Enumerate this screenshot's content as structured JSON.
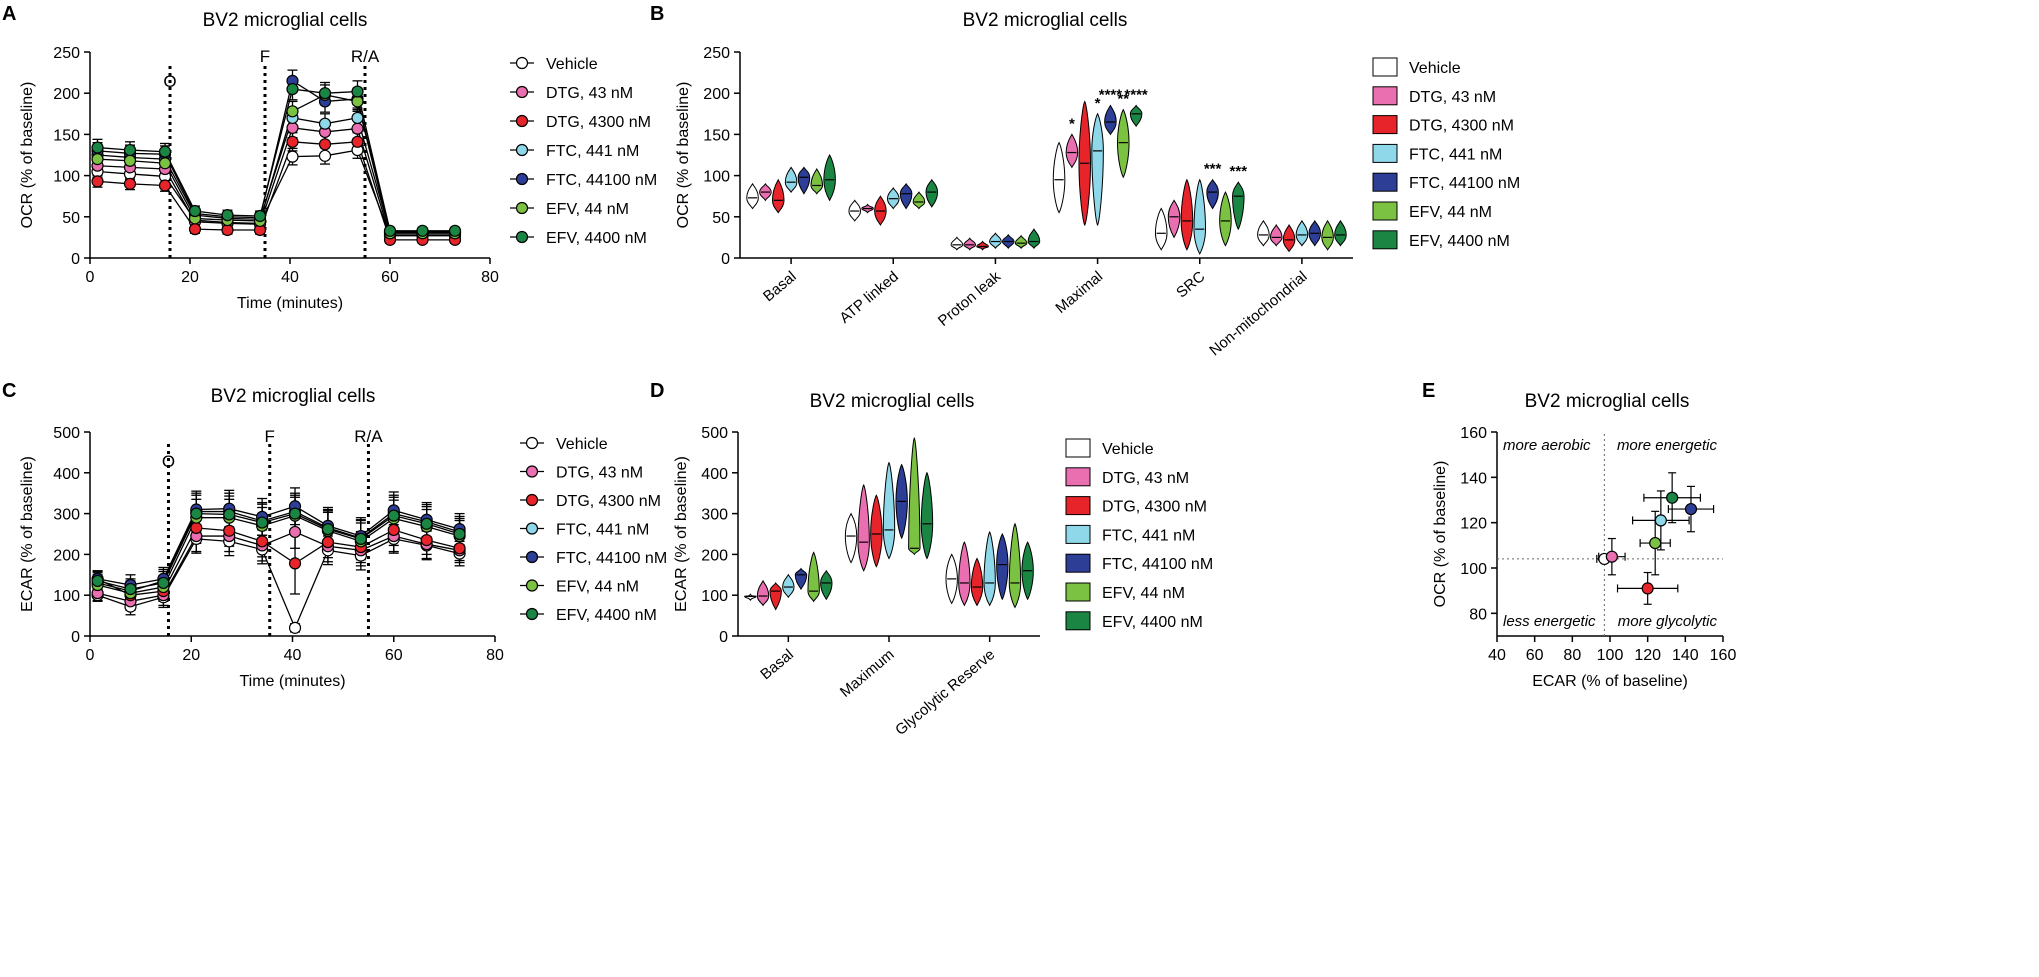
{
  "chart_data": [
    {
      "panel": "A",
      "type": "line",
      "title": "BV2 microglial cells",
      "xlabel": "Time (minutes)",
      "ylabel": "OCR (% of baseline)",
      "xlim": [
        0,
        80
      ],
      "ylim": [
        0,
        250
      ],
      "xticks": [
        0,
        20,
        40,
        60,
        80
      ],
      "yticks": [
        0,
        50,
        100,
        150,
        200,
        250
      ],
      "injections": [
        {
          "label": "O",
          "x": 16
        },
        {
          "label": "F",
          "x": 35
        },
        {
          "label": "R/A",
          "x": 55
        }
      ],
      "x": [
        1.5,
        8,
        15,
        21,
        27.5,
        34,
        40.5,
        47,
        53.5,
        60,
        66.5,
        73
      ],
      "series": [
        {
          "name": "Vehicle",
          "color": "#ffffff",
          "values": [
            105,
            102,
            99,
            46,
            43,
            42,
            123,
            124,
            131,
            28,
            28,
            28
          ],
          "err": [
            7,
            7,
            7,
            5,
            5,
            5,
            10,
            10,
            10,
            4,
            4,
            4
          ]
        },
        {
          "name": "DTG, 43 nM",
          "color": "#ea6fb0",
          "values": [
            112,
            110,
            108,
            44,
            42,
            41,
            158,
            153,
            157,
            27,
            27,
            27
          ],
          "err": [
            8,
            8,
            8,
            5,
            5,
            5,
            12,
            12,
            12,
            4,
            4,
            4
          ]
        },
        {
          "name": "DTG, 4300 nM",
          "color": "#e8242b",
          "values": [
            93,
            90,
            88,
            35,
            34,
            34,
            141,
            138,
            141,
            22,
            22,
            22
          ],
          "err": [
            7,
            7,
            7,
            5,
            5,
            5,
            11,
            11,
            11,
            4,
            4,
            4
          ]
        },
        {
          "name": "FTC, 441 nM",
          "color": "#8fd8ea",
          "values": [
            125,
            122,
            120,
            52,
            48,
            47,
            170,
            163,
            170,
            31,
            31,
            31
          ],
          "err": [
            9,
            9,
            9,
            6,
            6,
            6,
            12,
            12,
            12,
            4,
            4,
            4
          ]
        },
        {
          "name": "FTC, 44100 nM",
          "color": "#2d3e96",
          "values": [
            130,
            127,
            126,
            54,
            50,
            49,
            215,
            190,
            193,
            32,
            32,
            32
          ],
          "err": [
            10,
            10,
            10,
            6,
            6,
            6,
            13,
            13,
            13,
            4,
            4,
            4
          ]
        },
        {
          "name": "EFV, 44 nM",
          "color": "#7cc242",
          "values": [
            120,
            118,
            115,
            48,
            46,
            45,
            178,
            198,
            190,
            30,
            30,
            30
          ],
          "err": [
            9,
            9,
            9,
            6,
            6,
            6,
            12,
            12,
            12,
            4,
            4,
            4
          ]
        },
        {
          "name": "EFV, 4400 nM",
          "color": "#1b8544",
          "values": [
            134,
            131,
            129,
            57,
            52,
            51,
            205,
            200,
            202,
            33,
            33,
            33
          ],
          "err": [
            10,
            10,
            10,
            6,
            6,
            6,
            13,
            13,
            13,
            4,
            4,
            4
          ]
        }
      ]
    },
    {
      "panel": "B",
      "type": "violin",
      "title": "BV2 microglial cells",
      "ylabel": "OCR (% of baseline)",
      "ylim": [
        0,
        250
      ],
      "yticks": [
        0,
        50,
        100,
        150,
        200,
        250
      ],
      "categories": [
        "Basal",
        "ATP linked",
        "Proton leak",
        "Maximal",
        "SRC",
        "Non-mitochondrial"
      ],
      "series_names": [
        "Vehicle",
        "DTG, 43 nM",
        "DTG, 4300 nM",
        "FTC, 441 nM",
        "FTC, 44100 nM",
        "EFV, 44 nM",
        "EFV, 4400 nM"
      ],
      "colors": [
        "#ffffff",
        "#ea6fb0",
        "#e8242b",
        "#8fd8ea",
        "#2d3e96",
        "#7cc242",
        "#1b8544"
      ],
      "violins": [
        [
          [
            60,
            90,
            73
          ],
          [
            70,
            90,
            80
          ],
          [
            55,
            95,
            70
          ],
          [
            80,
            110,
            92
          ],
          [
            78,
            110,
            98
          ],
          [
            78,
            108,
            88
          ],
          [
            70,
            125,
            95
          ]
        ],
        [
          [
            45,
            70,
            57
          ],
          [
            55,
            65,
            60
          ],
          [
            40,
            75,
            57
          ],
          [
            60,
            85,
            72
          ],
          [
            60,
            90,
            78
          ],
          [
            60,
            80,
            68
          ],
          [
            62,
            95,
            80
          ]
        ],
        [
          [
            10,
            25,
            16
          ],
          [
            10,
            24,
            16
          ],
          [
            10,
            20,
            14
          ],
          [
            12,
            30,
            20
          ],
          [
            12,
            28,
            20
          ],
          [
            12,
            27,
            18
          ],
          [
            12,
            35,
            20
          ]
        ],
        [
          [
            55,
            140,
            95
          ],
          [
            110,
            150,
            128
          ],
          [
            40,
            190,
            115
          ],
          [
            40,
            175,
            130
          ],
          [
            150,
            185,
            165
          ],
          [
            98,
            180,
            140
          ],
          [
            160,
            185,
            175
          ]
        ],
        [
          [
            10,
            60,
            30
          ],
          [
            25,
            70,
            50
          ],
          [
            10,
            95,
            45
          ],
          [
            5,
            95,
            35
          ],
          [
            60,
            95,
            80
          ],
          [
            15,
            80,
            45
          ],
          [
            35,
            92,
            75
          ]
        ],
        [
          [
            15,
            45,
            28
          ],
          [
            15,
            40,
            25
          ],
          [
            8,
            40,
            22
          ],
          [
            15,
            45,
            28
          ],
          [
            15,
            45,
            30
          ],
          [
            10,
            45,
            25
          ],
          [
            15,
            45,
            28
          ]
        ]
      ],
      "annotations": [
        {
          "category": "Maximal",
          "series": "DTG, 43 nM",
          "text": "*"
        },
        {
          "category": "Maximal",
          "series": "FTC, 441 nM",
          "text": "*"
        },
        {
          "category": "Maximal",
          "series": "FTC, 44100 nM",
          "text": "****"
        },
        {
          "category": "Maximal",
          "series": "EFV, 44 nM",
          "text": "**"
        },
        {
          "category": "Maximal",
          "series": "EFV, 4400 nM",
          "text": "****"
        },
        {
          "category": "SRC",
          "series": "FTC, 44100 nM",
          "text": "***"
        },
        {
          "category": "SRC",
          "series": "EFV, 4400 nM",
          "text": "***"
        }
      ]
    },
    {
      "panel": "C",
      "type": "line",
      "title": "BV2 microglial cells",
      "xlabel": "Time (minutes)",
      "ylabel": "ECAR (% of baseline)",
      "xlim": [
        0,
        80
      ],
      "ylim": [
        0,
        500
      ],
      "xticks": [
        0,
        20,
        40,
        60,
        80
      ],
      "yticks": [
        0,
        100,
        200,
        300,
        400,
        500
      ],
      "injections": [
        {
          "label": "O",
          "x": 15.5
        },
        {
          "label": "F",
          "x": 35.5
        },
        {
          "label": "R/A",
          "x": 55
        }
      ],
      "x": [
        1.5,
        8,
        14.5,
        21,
        27.5,
        34,
        40.5,
        47,
        53.5,
        60,
        66.5,
        73
      ],
      "series": [
        {
          "name": "Vehicle",
          "color": "#ffffff",
          "values": [
            100,
            72,
            95,
            238,
            232,
            212,
            20,
            210,
            197,
            238,
            222,
            202
          ],
          "err": [
            15,
            20,
            25,
            35,
            35,
            35,
            10,
            35,
            35,
            35,
            35,
            30
          ]
        },
        {
          "name": "DTG, 43 nM",
          "color": "#ea6fb0",
          "values": [
            105,
            85,
            100,
            245,
            245,
            222,
            255,
            220,
            210,
            245,
            225,
            210
          ],
          "err": [
            18,
            22,
            25,
            38,
            38,
            38,
            40,
            38,
            38,
            38,
            35,
            30
          ]
        },
        {
          "name": "DTG, 4300 nM",
          "color": "#e8242b",
          "values": [
            140,
            100,
            110,
            265,
            258,
            232,
            178,
            230,
            218,
            260,
            235,
            215
          ],
          "err": [
            18,
            22,
            25,
            38,
            38,
            38,
            75,
            38,
            38,
            38,
            35,
            30
          ]
        },
        {
          "name": "FTC, 441 nM",
          "color": "#8fd8ea",
          "values": [
            130,
            110,
            135,
            305,
            305,
            282,
            305,
            265,
            240,
            300,
            280,
            255
          ],
          "err": [
            20,
            25,
            28,
            45,
            45,
            45,
            45,
            45,
            45,
            45,
            42,
            38
          ]
        },
        {
          "name": "FTC, 44100 nM",
          "color": "#2d3e96",
          "values": [
            140,
            125,
            140,
            310,
            312,
            292,
            318,
            270,
            245,
            308,
            285,
            262
          ],
          "err": [
            20,
            25,
            28,
            45,
            45,
            45,
            45,
            45,
            45,
            45,
            42,
            38
          ]
        },
        {
          "name": "EFV, 44 nM",
          "color": "#7cc242",
          "values": [
            125,
            105,
            120,
            290,
            290,
            270,
            295,
            258,
            232,
            288,
            268,
            245
          ],
          "err": [
            20,
            25,
            28,
            45,
            45,
            45,
            45,
            45,
            45,
            45,
            42,
            38
          ]
        },
        {
          "name": "EFV, 4400 nM",
          "color": "#1b8544",
          "values": [
            135,
            115,
            130,
            300,
            298,
            278,
            300,
            262,
            238,
            295,
            275,
            250
          ],
          "err": [
            20,
            25,
            28,
            45,
            45,
            45,
            45,
            45,
            45,
            45,
            42,
            38
          ]
        }
      ]
    },
    {
      "panel": "D",
      "type": "violin",
      "title": "BV2 microglial cells",
      "ylabel": "ECAR (% of baseline)",
      "ylim": [
        0,
        500
      ],
      "yticks": [
        0,
        100,
        200,
        300,
        400,
        500
      ],
      "categories": [
        "Basal",
        "Maximum",
        "Glycolytic Reserve"
      ],
      "series_names": [
        "Vehicle",
        "DTG, 43 nM",
        "DTG, 4300 nM",
        "FTC, 441 nM",
        "FTC, 44100 nM",
        "EFV, 44 nM",
        "EFV, 4400 nM"
      ],
      "colors": [
        "#ffffff",
        "#ea6fb0",
        "#e8242b",
        "#8fd8ea",
        "#2d3e96",
        "#7cc242",
        "#1b8544"
      ],
      "violins": [
        [
          [
            88,
            102,
            97
          ],
          [
            75,
            135,
            98
          ],
          [
            65,
            130,
            110
          ],
          [
            95,
            150,
            120
          ],
          [
            115,
            165,
            150
          ],
          [
            85,
            205,
            110
          ],
          [
            90,
            160,
            130
          ]
        ],
        [
          [
            180,
            300,
            245
          ],
          [
            160,
            370,
            230
          ],
          [
            170,
            345,
            250
          ],
          [
            190,
            425,
            260
          ],
          [
            240,
            420,
            330
          ],
          [
            200,
            485,
            215
          ],
          [
            190,
            400,
            275
          ]
        ],
        [
          [
            80,
            200,
            140
          ],
          [
            75,
            230,
            130
          ],
          [
            75,
            190,
            120
          ],
          [
            75,
            255,
            130
          ],
          [
            90,
            250,
            175
          ],
          [
            70,
            275,
            130
          ],
          [
            90,
            230,
            160
          ]
        ]
      ]
    },
    {
      "panel": "E",
      "type": "scatter",
      "title": "BV2 microglial cells",
      "xlabel": "ECAR (% of baseline)",
      "ylabel": "OCR (% of baseline)",
      "xlim": [
        40,
        160
      ],
      "ylim": [
        70,
        160
      ],
      "xticks": [
        40,
        60,
        80,
        100,
        120,
        140,
        160
      ],
      "yticks": [
        80,
        100,
        120,
        140,
        160
      ],
      "reference_lines": {
        "x": 97,
        "y": 104
      },
      "quadrant_labels": [
        "more aerobic",
        "more energetic",
        "less energetic",
        "more glycolytic"
      ],
      "points": [
        {
          "name": "Vehicle",
          "color": "#ffffff",
          "x": 97,
          "y": 104,
          "xerr": 4,
          "yerr": 1
        },
        {
          "name": "DTG, 43 nM",
          "color": "#ea6fb0",
          "x": 101,
          "y": 105,
          "xerr": 7,
          "yerr": 8
        },
        {
          "name": "DTG, 4300 nM",
          "color": "#e8242b",
          "x": 120,
          "y": 91,
          "xerr": 16,
          "yerr": 7
        },
        {
          "name": "FTC, 441 nM",
          "color": "#8fd8ea",
          "x": 127,
          "y": 121,
          "xerr": 15,
          "yerr": 13
        },
        {
          "name": "FTC, 44100 nM",
          "color": "#2d3e96",
          "x": 143,
          "y": 126,
          "xerr": 12,
          "yerr": 10
        },
        {
          "name": "EFV, 44 nM",
          "color": "#7cc242",
          "x": 124,
          "y": 111,
          "xerr": 8,
          "yerr": 14
        },
        {
          "name": "EFV, 4400 nM",
          "color": "#1b8544",
          "x": 133,
          "y": 131,
          "xerr": 15,
          "yerr": 11
        }
      ]
    }
  ],
  "panel_letters": [
    "A",
    "B",
    "C",
    "D",
    "E"
  ]
}
